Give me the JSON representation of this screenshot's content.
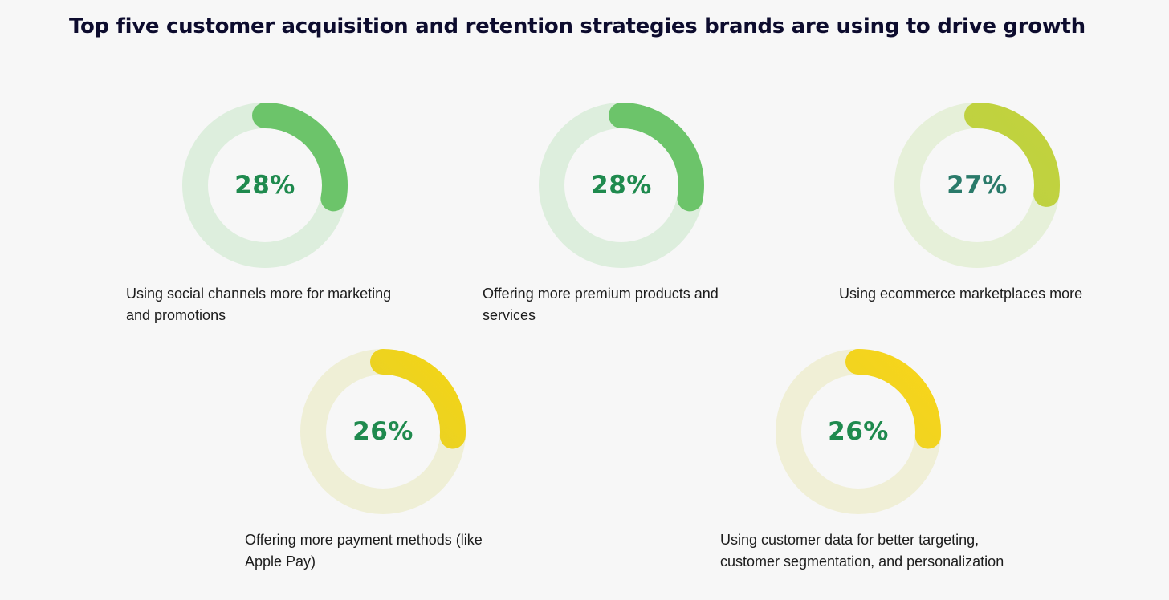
{
  "title": "Top five customer acquisition and retention strategies brands are using to drive growth",
  "chart_data": {
    "type": "donut",
    "unit": "%",
    "items": [
      {
        "value": 28,
        "display": "28%",
        "label": "Using social channels more for marketing and promotions",
        "track_color": "#ddeedd",
        "arc_color_start": "#6cc46a",
        "arc_color_end": "#6cc46a",
        "value_color": "#1f8a4e"
      },
      {
        "value": 28,
        "display": "28%",
        "label": "Offering more premium products and services",
        "track_color": "#ddeedd",
        "arc_color_start": "#6cc46a",
        "arc_color_end": "#6cc46a",
        "value_color": "#1f8a4e"
      },
      {
        "value": 27,
        "display": "27%",
        "label": "Using ecommerce marketplaces more",
        "track_color": "#e6f0d9",
        "arc_color_start": "#b9d04a",
        "arc_color_end": "#c2d23c",
        "value_color": "#2a7a6a"
      },
      {
        "value": 26,
        "display": "26%",
        "label": "Offering more payment methods (like Apple Pay)",
        "track_color": "#efefd6",
        "arc_color_start": "#dccf3a",
        "arc_color_end": "#f3d416",
        "value_color": "#1f8a4e"
      },
      {
        "value": 26,
        "display": "26%",
        "label": "Using customer data for better targeting, customer segmentation, and personalization",
        "track_color": "#f0efd6",
        "arc_color_start": "#e2d22c",
        "arc_color_end": "#f8d51a",
        "value_color": "#1f8a4e"
      }
    ]
  }
}
